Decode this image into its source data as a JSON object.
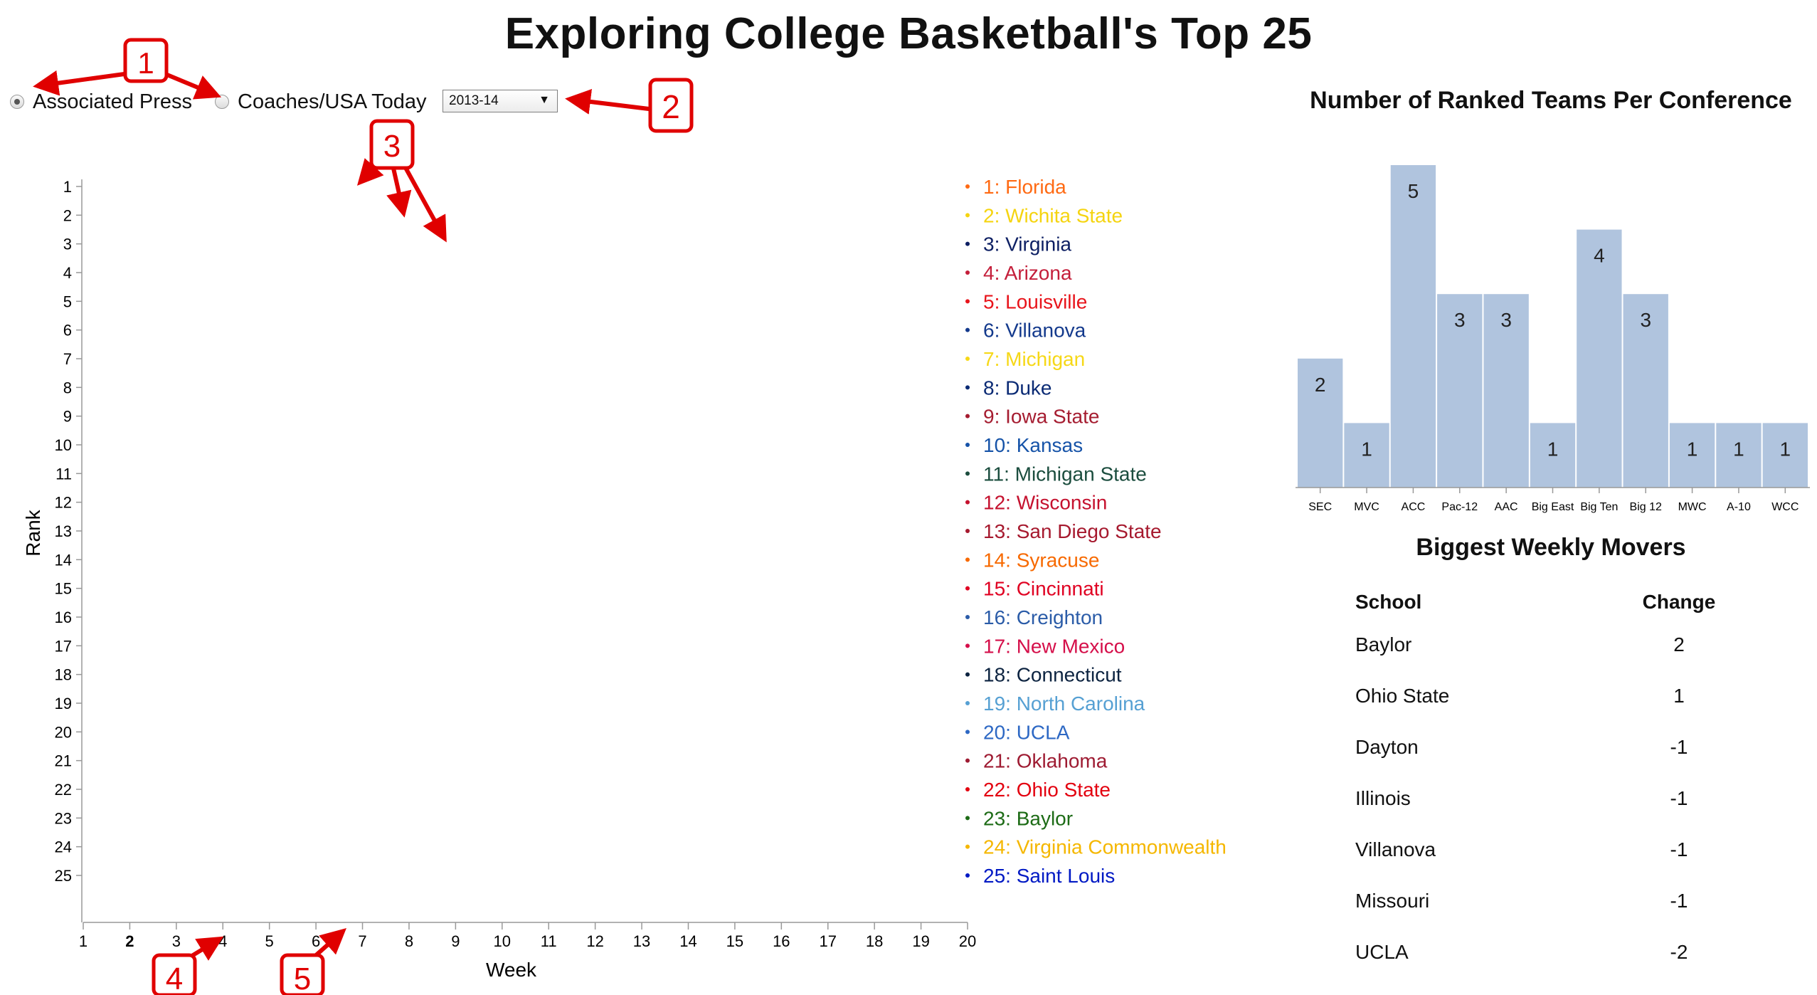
{
  "title": "Exploring College Basketball's Top 25",
  "controls": {
    "poll_options": [
      {
        "label": "Associated Press",
        "selected": true
      },
      {
        "label": "Coaches/USA Today",
        "selected": false
      }
    ],
    "season": "2013-14"
  },
  "callouts": [
    "1",
    "2",
    "3",
    "4",
    "5"
  ],
  "chart_data": [
    {
      "type": "line",
      "ylabel": "Rank",
      "xlabel": "Week",
      "x": [
        1,
        2,
        3,
        4,
        5,
        6,
        7,
        8,
        9,
        10,
        11,
        12,
        13,
        14,
        15,
        16,
        17,
        18,
        19,
        20
      ],
      "ylim": [
        1,
        25
      ],
      "current_week": 2,
      "series": [
        {
          "name": "Florida",
          "color": "#ff6a13",
          "values": [
            null,
            null,
            null,
            null,
            null,
            null,
            null,
            null,
            null,
            null,
            null,
            null,
            null,
            null,
            null,
            null,
            null,
            null,
            null,
            1
          ]
        },
        {
          "name": "Wichita State",
          "color": "#f5d410",
          "values": [
            null,
            null,
            null,
            null,
            null,
            null,
            null,
            null,
            null,
            null,
            null,
            null,
            null,
            null,
            null,
            null,
            null,
            null,
            null,
            2
          ]
        },
        {
          "name": "Virginia",
          "color": "#0d1f63",
          "values": [
            null,
            null,
            null,
            null,
            null,
            null,
            null,
            null,
            null,
            null,
            null,
            null,
            null,
            null,
            null,
            null,
            null,
            null,
            null,
            3
          ]
        },
        {
          "name": "Arizona",
          "color": "#c41e3a",
          "values": [
            null,
            null,
            null,
            null,
            null,
            null,
            null,
            null,
            null,
            null,
            null,
            null,
            null,
            null,
            null,
            null,
            null,
            null,
            null,
            4
          ]
        },
        {
          "name": "Louisville",
          "color": "#e8141b",
          "values": [
            null,
            null,
            null,
            null,
            null,
            null,
            null,
            null,
            null,
            null,
            null,
            null,
            null,
            null,
            null,
            null,
            null,
            null,
            null,
            5
          ]
        },
        {
          "name": "Villanova",
          "color": "#13398c",
          "values": [
            null,
            null,
            null,
            null,
            null,
            null,
            null,
            null,
            null,
            null,
            null,
            null,
            null,
            null,
            null,
            null,
            null,
            null,
            null,
            6
          ]
        },
        {
          "name": "Michigan",
          "color": "#f6d817",
          "values": [
            null,
            null,
            null,
            null,
            null,
            null,
            null,
            null,
            null,
            null,
            null,
            null,
            null,
            null,
            null,
            null,
            null,
            null,
            null,
            7
          ]
        },
        {
          "name": "Duke",
          "color": "#0a2a74",
          "values": [
            null,
            null,
            null,
            null,
            null,
            null,
            null,
            null,
            null,
            null,
            null,
            null,
            null,
            null,
            null,
            null,
            null,
            null,
            null,
            8
          ]
        },
        {
          "name": "Iowa State",
          "color": "#a51c30",
          "values": [
            null,
            null,
            null,
            null,
            null,
            null,
            null,
            null,
            null,
            null,
            null,
            null,
            null,
            null,
            null,
            null,
            null,
            null,
            null,
            9
          ]
        },
        {
          "name": "Kansas",
          "color": "#1653a8",
          "values": [
            null,
            null,
            null,
            null,
            null,
            null,
            null,
            null,
            null,
            null,
            null,
            null,
            null,
            null,
            null,
            null,
            null,
            null,
            null,
            10
          ]
        },
        {
          "name": "Michigan State",
          "color": "#1b4d3e",
          "values": [
            null,
            null,
            null,
            null,
            null,
            null,
            null,
            null,
            null,
            null,
            null,
            null,
            null,
            null,
            null,
            null,
            null,
            null,
            null,
            11
          ]
        },
        {
          "name": "Wisconsin",
          "color": "#c5112e",
          "values": [
            null,
            null,
            null,
            null,
            null,
            null,
            null,
            null,
            null,
            null,
            null,
            null,
            null,
            null,
            null,
            null,
            null,
            null,
            null,
            12
          ]
        },
        {
          "name": "San Diego State",
          "color": "#a6192e",
          "values": [
            null,
            null,
            null,
            null,
            null,
            null,
            null,
            null,
            null,
            null,
            null,
            null,
            null,
            null,
            null,
            null,
            null,
            null,
            null,
            13
          ]
        },
        {
          "name": "Syracuse",
          "color": "#f76900",
          "values": [
            null,
            null,
            null,
            null,
            null,
            null,
            null,
            null,
            null,
            null,
            null,
            null,
            null,
            null,
            null,
            null,
            null,
            null,
            null,
            14
          ]
        },
        {
          "name": "Cincinnati",
          "color": "#e00122",
          "values": [
            null,
            null,
            null,
            null,
            null,
            null,
            null,
            null,
            null,
            null,
            null,
            null,
            null,
            null,
            null,
            null,
            null,
            null,
            null,
            15
          ]
        },
        {
          "name": "Creighton",
          "color": "#2b5ca8",
          "values": [
            null,
            null,
            null,
            null,
            null,
            null,
            null,
            null,
            null,
            null,
            null,
            null,
            null,
            null,
            null,
            null,
            null,
            null,
            null,
            16
          ]
        },
        {
          "name": "New Mexico",
          "color": "#d50f4a",
          "values": [
            null,
            null,
            null,
            null,
            null,
            null,
            null,
            null,
            null,
            null,
            null,
            null,
            null,
            null,
            null,
            null,
            null,
            null,
            null,
            17
          ]
        },
        {
          "name": "Connecticut",
          "color": "#0c2340",
          "values": [
            null,
            null,
            null,
            null,
            null,
            null,
            null,
            null,
            null,
            null,
            null,
            null,
            null,
            null,
            null,
            null,
            null,
            null,
            null,
            18
          ]
        },
        {
          "name": "North Carolina",
          "color": "#56a0d3",
          "values": [
            null,
            null,
            null,
            null,
            null,
            null,
            null,
            null,
            null,
            null,
            null,
            null,
            null,
            null,
            null,
            null,
            null,
            null,
            null,
            19
          ]
        },
        {
          "name": "UCLA",
          "color": "#2d68c4",
          "values": [
            null,
            null,
            null,
            null,
            null,
            null,
            null,
            null,
            null,
            null,
            null,
            null,
            null,
            null,
            null,
            null,
            null,
            null,
            null,
            20
          ]
        },
        {
          "name": "Oklahoma",
          "color": "#9e1b32",
          "values": [
            null,
            null,
            null,
            null,
            null,
            null,
            null,
            null,
            null,
            null,
            null,
            null,
            null,
            null,
            null,
            null,
            null,
            null,
            null,
            21
          ]
        },
        {
          "name": "Ohio State",
          "color": "#e3000f",
          "values": [
            null,
            null,
            null,
            null,
            null,
            null,
            null,
            null,
            null,
            null,
            null,
            null,
            null,
            null,
            null,
            null,
            null,
            null,
            null,
            22
          ]
        },
        {
          "name": "Baylor",
          "color": "#1d6b16",
          "values": [
            null,
            null,
            null,
            null,
            null,
            null,
            null,
            null,
            null,
            null,
            null,
            null,
            null,
            null,
            null,
            null,
            null,
            null,
            null,
            23
          ]
        },
        {
          "name": "Virginia Commonwealth",
          "color": "#f5b700",
          "values": [
            null,
            null,
            null,
            null,
            null,
            null,
            null,
            null,
            null,
            null,
            null,
            null,
            null,
            null,
            null,
            null,
            null,
            null,
            null,
            24
          ]
        },
        {
          "name": "Saint Louis",
          "color": "#0019c4",
          "values": [
            null,
            null,
            null,
            null,
            null,
            null,
            null,
            null,
            null,
            null,
            null,
            null,
            null,
            null,
            null,
            null,
            null,
            null,
            null,
            25
          ]
        }
      ]
    },
    {
      "type": "bar",
      "title": "Number of Ranked Teams Per Conference",
      "categories": [
        "SEC",
        "MVC",
        "ACC",
        "Pac-12",
        "AAC",
        "Big East",
        "Big Ten",
        "Big 12",
        "MWC",
        "A-10",
        "WCC"
      ],
      "values": [
        2,
        1,
        5,
        3,
        3,
        1,
        4,
        3,
        1,
        1,
        1
      ],
      "ylim": [
        0,
        5
      ],
      "bar_color": "#b0c4de"
    }
  ],
  "movers": {
    "title": "Biggest Weekly Movers",
    "headers": {
      "school": "School",
      "change": "Change"
    },
    "rows": [
      {
        "school": "Baylor",
        "change": "2"
      },
      {
        "school": "Ohio State",
        "change": "1"
      },
      {
        "school": "Dayton",
        "change": "-1"
      },
      {
        "school": "Illinois",
        "change": "-1"
      },
      {
        "school": "Villanova",
        "change": "-1"
      },
      {
        "school": "Missouri",
        "change": "-1"
      },
      {
        "school": "UCLA",
        "change": "-2"
      }
    ]
  }
}
